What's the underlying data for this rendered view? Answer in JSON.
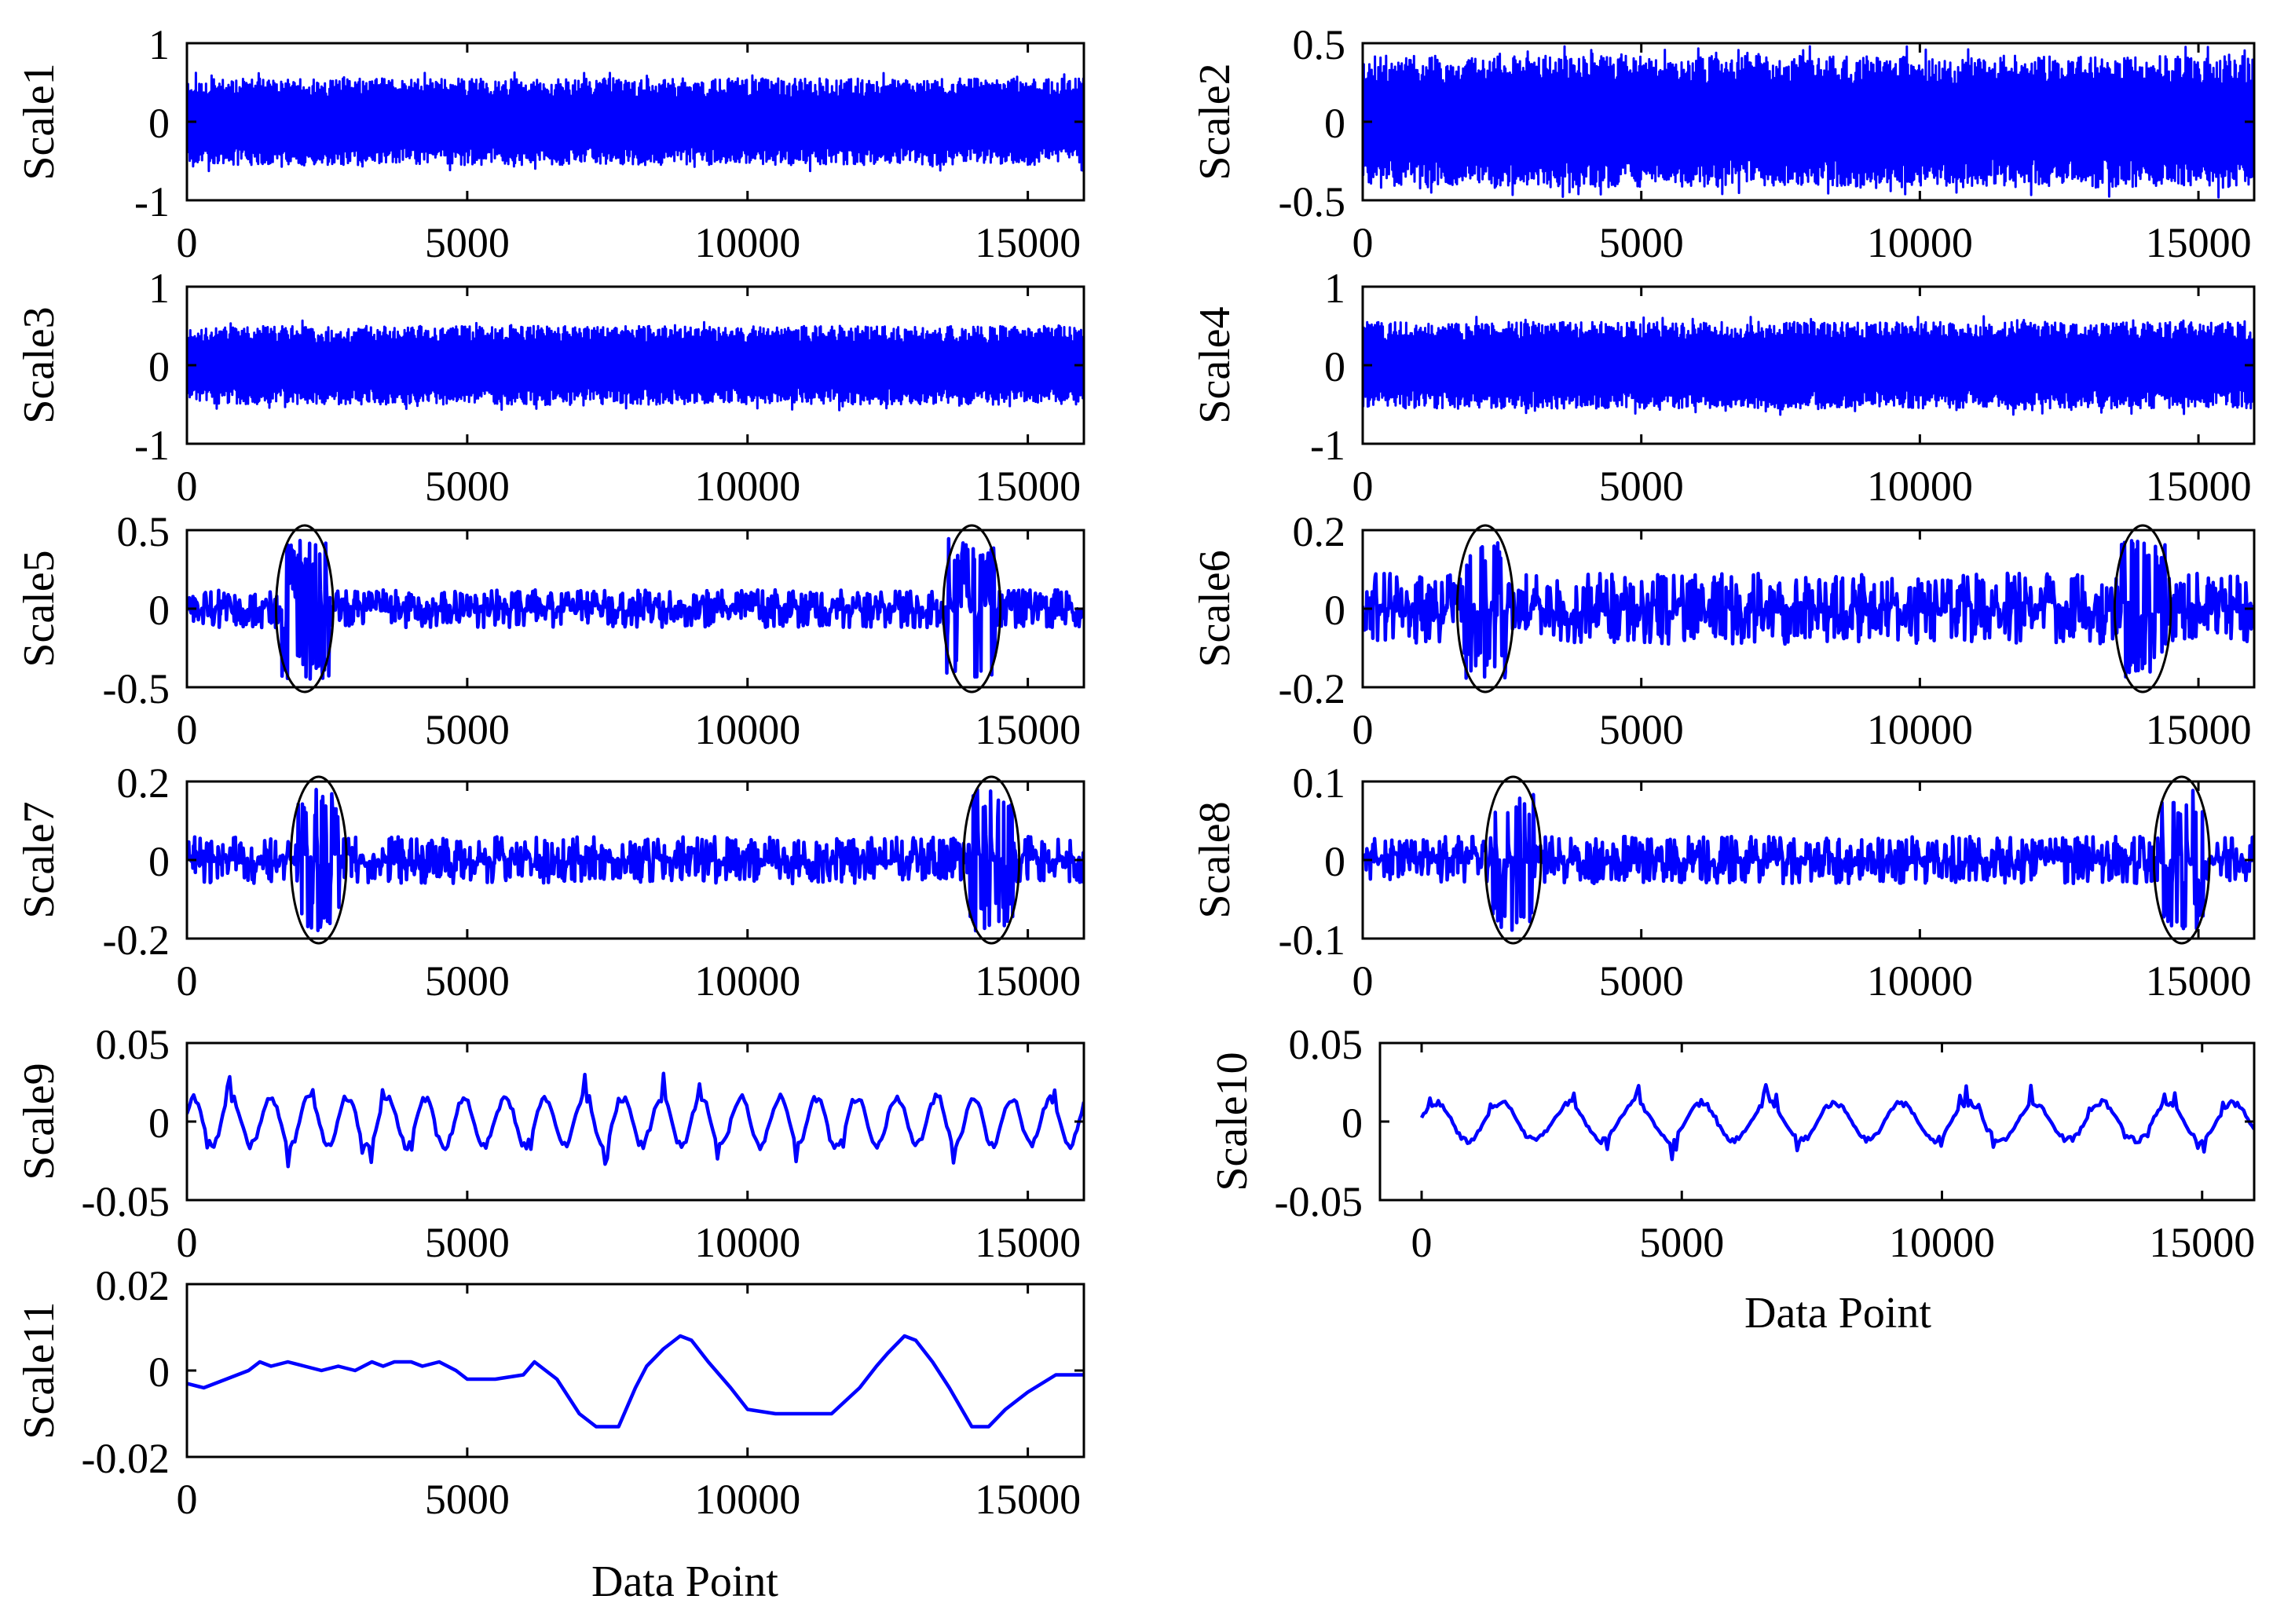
{
  "figure": {
    "xlabel": "Data Point"
  },
  "chart_data": [
    {
      "type": "line",
      "ylabel": "Scale1",
      "ylim": [
        -1,
        1
      ],
      "yticks": [
        "1",
        "0",
        "-1"
      ],
      "ytickvals": [
        1,
        0,
        -1
      ],
      "xlim": [
        0,
        16000
      ],
      "xticks": [
        "0",
        "5000",
        "10000",
        "15000"
      ],
      "xtickvals": [
        0,
        5000,
        10000,
        15000
      ],
      "xlabel": "",
      "series": [
        {
          "name": "Scale1",
          "color": "#0000ff",
          "kind": "noise",
          "amplitude": 0.55,
          "period": 0,
          "seed": 11
        }
      ],
      "annotations": []
    },
    {
      "type": "line",
      "ylabel": "Scale2",
      "ylim": [
        -0.5,
        0.5
      ],
      "yticks": [
        "0.5",
        "0",
        "-0.5"
      ],
      "ytickvals": [
        0.5,
        0,
        -0.5
      ],
      "xlim": [
        0,
        16000
      ],
      "xticks": [
        "0",
        "5000",
        "10000",
        "15000"
      ],
      "xtickvals": [
        0,
        5000,
        10000,
        15000
      ],
      "xlabel": "",
      "series": [
        {
          "name": "Scale2",
          "color": "#0000ff",
          "kind": "noise",
          "amplitude": 0.42,
          "period": 0,
          "seed": 23
        }
      ],
      "annotations": []
    },
    {
      "type": "line",
      "ylabel": "Scale3",
      "ylim": [
        -1,
        1
      ],
      "yticks": [
        "1",
        "0",
        "-1"
      ],
      "ytickvals": [
        1,
        0,
        -1
      ],
      "xlim": [
        0,
        16000
      ],
      "xticks": [
        "0",
        "5000",
        "10000",
        "15000"
      ],
      "xtickvals": [
        0,
        5000,
        10000,
        15000
      ],
      "xlabel": "",
      "series": [
        {
          "name": "Scale3",
          "color": "#0000ff",
          "kind": "noise",
          "amplitude": 0.5,
          "period": 0,
          "seed": 37
        }
      ],
      "annotations": []
    },
    {
      "type": "line",
      "ylabel": "Scale4",
      "ylim": [
        -1,
        1
      ],
      "yticks": [
        "1",
        "0",
        "-1"
      ],
      "ytickvals": [
        1,
        0,
        -1
      ],
      "xlim": [
        0,
        16000
      ],
      "xticks": [
        "0",
        "5000",
        "10000",
        "15000"
      ],
      "xtickvals": [
        0,
        5000,
        10000,
        15000
      ],
      "xlabel": "",
      "series": [
        {
          "name": "Scale4",
          "color": "#0000ff",
          "kind": "noise",
          "amplitude": 0.55,
          "period": 0,
          "seed": 41
        }
      ],
      "annotations": []
    },
    {
      "type": "line",
      "ylabel": "Scale5",
      "ylim": [
        -0.5,
        0.5
      ],
      "yticks": [
        "0.5",
        "0",
        "-0.5"
      ],
      "ytickvals": [
        0.5,
        0,
        -0.5
      ],
      "xlim": [
        0,
        16000
      ],
      "xticks": [
        "0",
        "5000",
        "10000",
        "15000"
      ],
      "xtickvals": [
        0,
        5000,
        10000,
        15000
      ],
      "xlabel": "",
      "series": [
        {
          "name": "Scale5",
          "color": "#0000ff",
          "kind": "burst",
          "amplitude": 0.12,
          "period": 0,
          "seed": 53
        }
      ],
      "annotations": [
        {
          "shape": "ellipse",
          "cx": 2100,
          "cy": 0,
          "rx": 1000,
          "ry": 0.5
        },
        {
          "shape": "ellipse",
          "cx": 14000,
          "cy": 0,
          "rx": 1000,
          "ry": 0.5
        }
      ]
    },
    {
      "type": "line",
      "ylabel": "Scale6",
      "ylim": [
        -0.2,
        0.2
      ],
      "yticks": [
        "0.2",
        "0",
        "-0.2"
      ],
      "ytickvals": [
        0.2,
        0,
        -0.2
      ],
      "xlim": [
        0,
        16000
      ],
      "xticks": [
        "0",
        "5000",
        "10000",
        "15000"
      ],
      "xtickvals": [
        0,
        5000,
        10000,
        15000
      ],
      "xlabel": "",
      "series": [
        {
          "name": "Scale6",
          "color": "#0000ff",
          "kind": "burst",
          "amplitude": 0.09,
          "period": 0,
          "seed": 67
        }
      ],
      "annotations": [
        {
          "shape": "ellipse",
          "cx": 2200,
          "cy": 0,
          "rx": 900,
          "ry": 0.2
        },
        {
          "shape": "ellipse",
          "cx": 14000,
          "cy": 0,
          "rx": 900,
          "ry": 0.2
        }
      ]
    },
    {
      "type": "line",
      "ylabel": "Scale7",
      "ylim": [
        -0.2,
        0.2
      ],
      "yticks": [
        "0.2",
        "0",
        "-0.2"
      ],
      "ytickvals": [
        0.2,
        0,
        -0.2
      ],
      "xlim": [
        0,
        16000
      ],
      "xticks": [
        "0",
        "5000",
        "10000",
        "15000"
      ],
      "xtickvals": [
        0,
        5000,
        10000,
        15000
      ],
      "xlabel": "",
      "series": [
        {
          "name": "Scale7",
          "color": "#0000ff",
          "kind": "burst",
          "amplitude": 0.06,
          "period": 0,
          "seed": 71
        }
      ],
      "annotations": [
        {
          "shape": "ellipse",
          "cx": 2350,
          "cy": 0,
          "rx": 850,
          "ry": 0.2
        },
        {
          "shape": "ellipse",
          "cx": 14350,
          "cy": 0,
          "rx": 850,
          "ry": 0.2
        }
      ]
    },
    {
      "type": "line",
      "ylabel": "Scale8",
      "ylim": [
        -0.1,
        0.1
      ],
      "yticks": [
        "0.1",
        "0",
        "-0.1"
      ],
      "ytickvals": [
        0.1,
        0,
        -0.1
      ],
      "xlim": [
        0,
        16000
      ],
      "xticks": [
        "0",
        "5000",
        "10000",
        "15000"
      ],
      "xtickvals": [
        0,
        5000,
        10000,
        15000
      ],
      "xlabel": "",
      "series": [
        {
          "name": "Scale8",
          "color": "#0000ff",
          "kind": "burst",
          "amplitude": 0.03,
          "period": 0,
          "seed": 83
        }
      ],
      "annotations": [
        {
          "shape": "ellipse",
          "cx": 2700,
          "cy": 0,
          "rx": 850,
          "ry": 0.1
        },
        {
          "shape": "ellipse",
          "cx": 14700,
          "cy": 0,
          "rx": 850,
          "ry": 0.1
        }
      ]
    },
    {
      "type": "line",
      "ylabel": "Scale9",
      "ylim": [
        -0.05,
        0.05
      ],
      "yticks": [
        "0.05",
        "0",
        "-0.05"
      ],
      "ytickvals": [
        0.05,
        0,
        -0.05
      ],
      "xlim": [
        0,
        16000
      ],
      "xticks": [
        "0",
        "5000",
        "10000",
        "15000"
      ],
      "xtickvals": [
        0,
        5000,
        10000,
        15000
      ],
      "xlabel": "",
      "series": [
        {
          "name": "Scale9",
          "color": "#0000ff",
          "kind": "wave",
          "amplitude": 0.018,
          "period": 700,
          "seed": 97
        }
      ],
      "annotations": []
    },
    {
      "type": "line",
      "ylabel": "Scale10",
      "ylim": [
        -0.05,
        0.05
      ],
      "yticks": [
        "0.05",
        "0",
        "-0.05"
      ],
      "ytickvals": [
        0.05,
        0,
        -0.05
      ],
      "xlim": [
        -800,
        16000
      ],
      "xticks": [
        "0",
        "5000",
        "10000",
        "15000"
      ],
      "xtickvals": [
        0,
        5000,
        10000,
        15000
      ],
      "xlabel": "Data Point",
      "series": [
        {
          "name": "Scale10",
          "color": "#0000ff",
          "kind": "wave",
          "amplitude": 0.014,
          "period": 1300,
          "seed": 101
        }
      ],
      "annotations": []
    },
    {
      "type": "line",
      "ylabel": "Scale11",
      "ylim": [
        -0.02,
        0.02
      ],
      "yticks": [
        "0.02",
        "0",
        "-0.02"
      ],
      "ytickvals": [
        0.02,
        0,
        -0.02
      ],
      "xlim": [
        0,
        16000
      ],
      "xticks": [
        "0",
        "5000",
        "10000",
        "15000"
      ],
      "xtickvals": [
        0,
        5000,
        10000,
        15000
      ],
      "xlabel": "Data Point",
      "series": [
        {
          "name": "Scale11",
          "color": "#0000ff",
          "kind": "points",
          "amplitude": 0,
          "period": 0,
          "seed": 0,
          "x": [
            0,
            300,
            500,
            700,
            900,
            1100,
            1300,
            1500,
            1800,
            2100,
            2400,
            2700,
            3000,
            3300,
            3500,
            3700,
            4000,
            4200,
            4500,
            4800,
            5000,
            5500,
            6000,
            6200,
            6600,
            7000,
            7300,
            7700,
            8000,
            8200,
            8500,
            8800,
            9000,
            9300,
            9700,
            10000,
            10500,
            11000,
            11500,
            12000,
            12300,
            12500,
            12800,
            13000,
            13300,
            13600,
            14000,
            14300,
            14600,
            15000,
            15500,
            16000
          ],
          "y": [
            -0.003,
            -0.004,
            -0.003,
            -0.002,
            -0.001,
            0.0,
            0.002,
            0.001,
            0.002,
            0.001,
            0.0,
            0.001,
            0.0,
            0.002,
            0.001,
            0.002,
            0.002,
            0.001,
            0.002,
            0.0,
            -0.002,
            -0.002,
            -0.001,
            0.002,
            -0.002,
            -0.01,
            -0.013,
            -0.013,
            -0.004,
            0.001,
            0.005,
            0.008,
            0.007,
            0.002,
            -0.004,
            -0.009,
            -0.01,
            -0.01,
            -0.01,
            -0.004,
            0.001,
            0.004,
            0.008,
            0.007,
            0.002,
            -0.004,
            -0.013,
            -0.013,
            -0.009,
            -0.005,
            -0.001,
            -0.001
          ]
        }
      ],
      "annotations": []
    }
  ]
}
